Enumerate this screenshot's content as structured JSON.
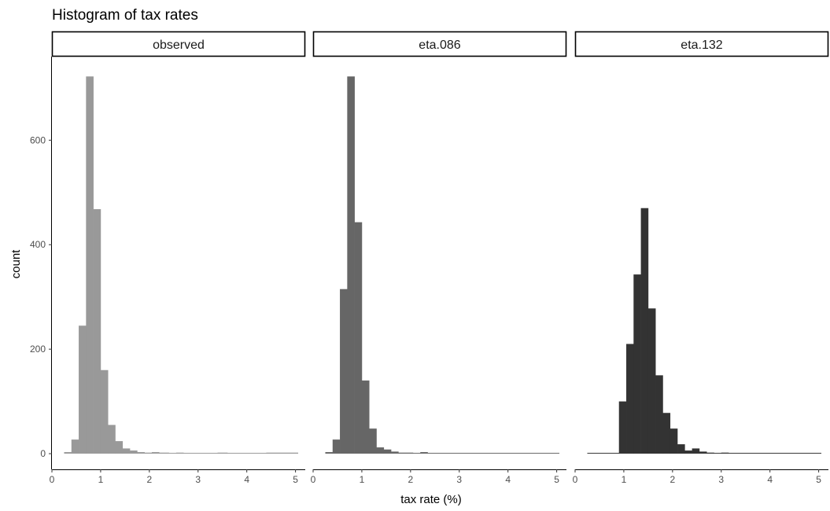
{
  "chart_data": {
    "type": "bar",
    "title": "Histogram of tax rates",
    "xlabel": "tax rate (%)",
    "ylabel": "count",
    "xlim": [
      0,
      5.2
    ],
    "ylim": [
      -30,
      760
    ],
    "x_ticks": [
      0,
      1,
      2,
      3,
      4,
      5
    ],
    "y_ticks": [
      0,
      200,
      400,
      600
    ],
    "grid": false,
    "panels": [
      {
        "label": "observed",
        "color": "#999999",
        "bins": [
          {
            "x0": 0.25,
            "x1": 0.4,
            "count": 3
          },
          {
            "x0": 0.4,
            "x1": 0.55,
            "count": 27
          },
          {
            "x0": 0.55,
            "x1": 0.7,
            "count": 245
          },
          {
            "x0": 0.7,
            "x1": 0.85,
            "count": 722
          },
          {
            "x0": 0.85,
            "x1": 1.0,
            "count": 468
          },
          {
            "x0": 1.0,
            "x1": 1.15,
            "count": 160
          },
          {
            "x0": 1.15,
            "x1": 1.3,
            "count": 55
          },
          {
            "x0": 1.3,
            "x1": 1.45,
            "count": 24
          },
          {
            "x0": 1.45,
            "x1": 1.6,
            "count": 10
          },
          {
            "x0": 1.6,
            "x1": 1.75,
            "count": 6
          },
          {
            "x0": 1.75,
            "x1": 1.9,
            "count": 3
          },
          {
            "x0": 1.9,
            "x1": 2.05,
            "count": 2
          },
          {
            "x0": 2.05,
            "x1": 2.2,
            "count": 3
          },
          {
            "x0": 2.2,
            "x1": 2.4,
            "count": 2
          },
          {
            "x0": 2.4,
            "x1": 2.55,
            "count": 1
          },
          {
            "x0": 2.55,
            "x1": 2.7,
            "count": 2
          },
          {
            "x0": 2.7,
            "x1": 3.4,
            "count": 1
          },
          {
            "x0": 3.4,
            "x1": 3.6,
            "count": 2
          },
          {
            "x0": 3.6,
            "x1": 4.4,
            "count": 1
          },
          {
            "x0": 4.4,
            "x1": 5.05,
            "count": 2
          }
        ]
      },
      {
        "label": "eta.086",
        "color": "#666666",
        "bins": [
          {
            "x0": 0.25,
            "x1": 0.4,
            "count": 3
          },
          {
            "x0": 0.4,
            "x1": 0.55,
            "count": 27
          },
          {
            "x0": 0.55,
            "x1": 0.7,
            "count": 315
          },
          {
            "x0": 0.7,
            "x1": 0.85,
            "count": 722
          },
          {
            "x0": 0.85,
            "x1": 1.0,
            "count": 443
          },
          {
            "x0": 1.0,
            "x1": 1.15,
            "count": 140
          },
          {
            "x0": 1.15,
            "x1": 1.3,
            "count": 48
          },
          {
            "x0": 1.3,
            "x1": 1.45,
            "count": 12
          },
          {
            "x0": 1.45,
            "x1": 1.6,
            "count": 8
          },
          {
            "x0": 1.6,
            "x1": 1.75,
            "count": 4
          },
          {
            "x0": 1.75,
            "x1": 2.05,
            "count": 2
          },
          {
            "x0": 2.05,
            "x1": 2.2,
            "count": 1
          },
          {
            "x0": 2.2,
            "x1": 2.35,
            "count": 3
          },
          {
            "x0": 2.35,
            "x1": 5.05,
            "count": 1
          }
        ]
      },
      {
        "label": "eta.132",
        "color": "#333333",
        "bins": [
          {
            "x0": 0.25,
            "x1": 0.9,
            "count": 1
          },
          {
            "x0": 0.9,
            "x1": 1.05,
            "count": 100
          },
          {
            "x0": 1.05,
            "x1": 1.2,
            "count": 210
          },
          {
            "x0": 1.2,
            "x1": 1.35,
            "count": 343
          },
          {
            "x0": 1.35,
            "x1": 1.5,
            "count": 470
          },
          {
            "x0": 1.5,
            "x1": 1.65,
            "count": 278
          },
          {
            "x0": 1.65,
            "x1": 1.8,
            "count": 150
          },
          {
            "x0": 1.8,
            "x1": 1.95,
            "count": 78
          },
          {
            "x0": 1.95,
            "x1": 2.1,
            "count": 48
          },
          {
            "x0": 2.1,
            "x1": 2.25,
            "count": 18
          },
          {
            "x0": 2.25,
            "x1": 2.4,
            "count": 6
          },
          {
            "x0": 2.4,
            "x1": 2.55,
            "count": 10
          },
          {
            "x0": 2.55,
            "x1": 2.7,
            "count": 4
          },
          {
            "x0": 2.7,
            "x1": 2.85,
            "count": 2
          },
          {
            "x0": 2.85,
            "x1": 3.0,
            "count": 1
          },
          {
            "x0": 3.0,
            "x1": 3.15,
            "count": 2
          },
          {
            "x0": 3.15,
            "x1": 5.05,
            "count": 1
          }
        ]
      }
    ]
  }
}
